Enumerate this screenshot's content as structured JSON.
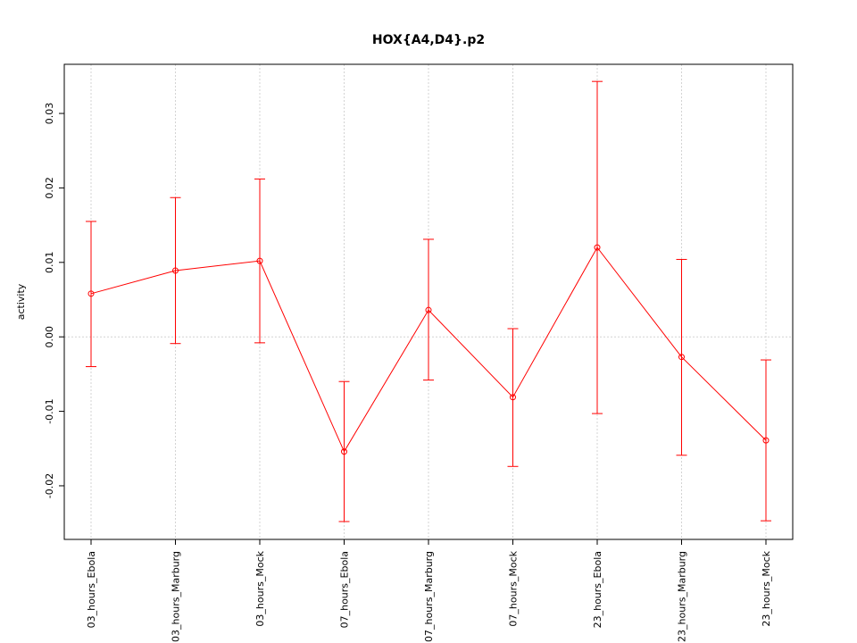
{
  "chart_data": {
    "type": "line",
    "title": "HOX{A4,D4}.p2",
    "xlabel": "",
    "ylabel": "activity",
    "categories": [
      "03_hours_Ebola",
      "03_hours_Marburg",
      "03_hours_Mock",
      "07_hours_Ebola",
      "07_hours_Marburg",
      "07_hours_Mock",
      "23_hours_Ebola",
      "23_hours_Marburg",
      "23_hours_Mock"
    ],
    "series": [
      {
        "values": [
          0.0058,
          0.0089,
          0.0102,
          -0.0154,
          0.0036,
          -0.0081,
          0.012,
          -0.0027,
          -0.0139
        ],
        "upper": [
          0.0155,
          0.0187,
          0.0212,
          -0.006,
          0.0131,
          0.0011,
          0.0343,
          0.0104,
          -0.0031
        ],
        "lower": [
          -0.004,
          -0.0009,
          -0.0008,
          -0.0248,
          -0.0058,
          -0.0174,
          -0.0103,
          -0.0159,
          -0.0247
        ]
      }
    ],
    "yticks": [
      "-0.02",
      "-0.01",
      "0.00",
      "0.01",
      "0.02",
      "0.03"
    ],
    "ylim": [
      -0.0272,
      0.0366
    ],
    "grid": true,
    "colors": {
      "series": "#ff0000",
      "grid": "#d3d3d3",
      "frame": "#000000"
    }
  }
}
